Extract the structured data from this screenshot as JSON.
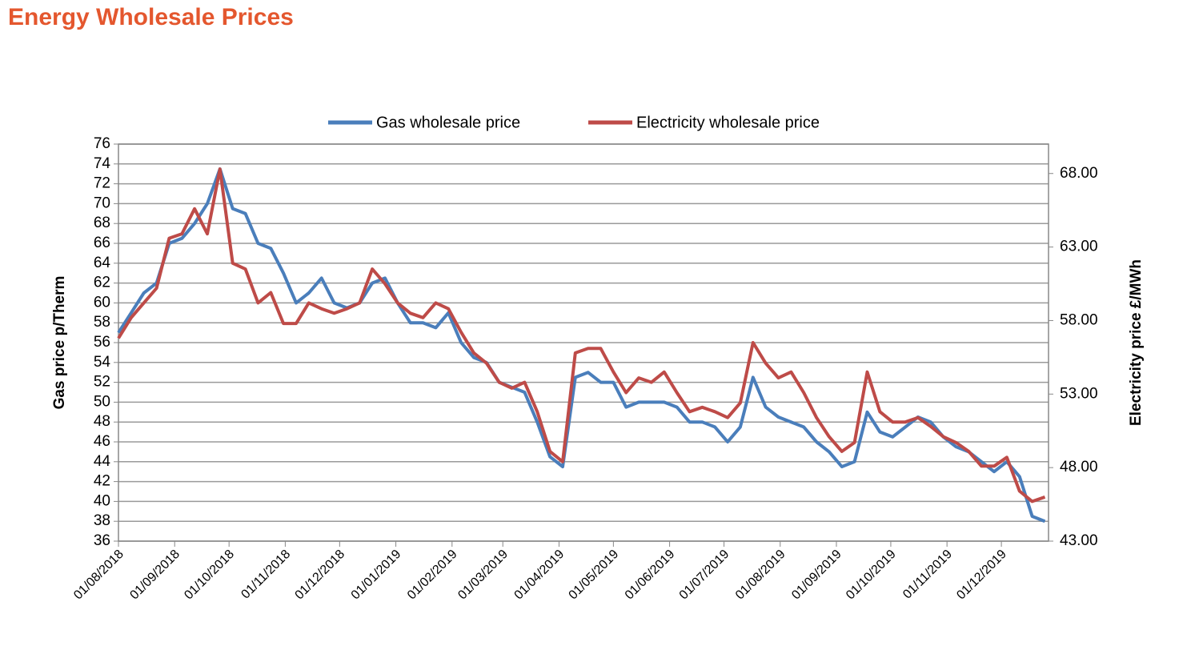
{
  "chart_data": {
    "type": "line",
    "title": "Energy Wholesale Prices",
    "ylabel": "Gas price p/Therm",
    "y2label": "Electricity price £/MWh",
    "x": [
      "2018-08-01",
      "2018-08-08",
      "2018-08-15",
      "2018-08-22",
      "2018-08-29",
      "2018-09-05",
      "2018-09-12",
      "2018-09-19",
      "2018-09-26",
      "2018-10-03",
      "2018-10-10",
      "2018-10-17",
      "2018-10-24",
      "2018-10-31",
      "2018-11-07",
      "2018-11-14",
      "2018-11-21",
      "2018-11-28",
      "2018-12-05",
      "2018-12-12",
      "2018-12-19",
      "2018-12-26",
      "2019-01-02",
      "2019-01-09",
      "2019-01-16",
      "2019-01-23",
      "2019-01-30",
      "2019-02-06",
      "2019-02-13",
      "2019-02-20",
      "2019-02-27",
      "2019-03-06",
      "2019-03-13",
      "2019-03-20",
      "2019-03-27",
      "2019-04-03",
      "2019-04-10",
      "2019-04-17",
      "2019-04-24",
      "2019-05-01",
      "2019-05-08",
      "2019-05-15",
      "2019-05-22",
      "2019-05-29",
      "2019-06-05",
      "2019-06-12",
      "2019-06-19",
      "2019-06-26",
      "2019-07-03",
      "2019-07-10",
      "2019-07-17",
      "2019-07-24",
      "2019-07-31",
      "2019-08-07",
      "2019-08-14",
      "2019-08-21",
      "2019-08-28",
      "2019-09-04",
      "2019-09-11",
      "2019-09-18",
      "2019-09-25",
      "2019-10-02",
      "2019-10-09",
      "2019-10-16",
      "2019-10-23",
      "2019-10-30",
      "2019-11-06",
      "2019-11-13",
      "2019-11-20",
      "2019-11-27",
      "2019-12-04",
      "2019-12-11",
      "2019-12-18",
      "2019-12-25"
    ],
    "series": [
      {
        "name": "Gas wholesale price",
        "color": "#4a7ebb",
        "axis": "y",
        "values": [
          57,
          59,
          61,
          62,
          66,
          66.5,
          68,
          70,
          73.5,
          69.5,
          69,
          66,
          65.5,
          63,
          60,
          61,
          62.5,
          60,
          59.5,
          60,
          62,
          62.5,
          60,
          58,
          58,
          57.5,
          59,
          56,
          54.5,
          54,
          52,
          51.5,
          51,
          48,
          44.5,
          43.5,
          52.5,
          53,
          52,
          52,
          49.5,
          50,
          50,
          50,
          49.5,
          48,
          48,
          47.5,
          46,
          47.5,
          52.5,
          49.5,
          48.5,
          48,
          47.5,
          46,
          45,
          43.5,
          44,
          49,
          47,
          46.5,
          47.5,
          48.5,
          48,
          46.5,
          45.5,
          45,
          44,
          43,
          44,
          42.5,
          38.5,
          38
        ]
      },
      {
        "name": "Electricity wholesale price",
        "color": "#be4b48",
        "axis": "y2",
        "values": [
          56.8,
          58.2,
          59.2,
          60.2,
          63.6,
          63.9,
          65.6,
          63.9,
          68.3,
          61.9,
          61.5,
          59.2,
          59.9,
          57.8,
          57.8,
          59.2,
          58.8,
          58.5,
          58.8,
          59.2,
          61.5,
          60.5,
          59.2,
          58.5,
          58.2,
          59.2,
          58.8,
          57.2,
          55.8,
          55.1,
          53.8,
          53.4,
          53.8,
          51.8,
          49.1,
          48.4,
          55.8,
          56.1,
          56.1,
          54.5,
          53.1,
          54.1,
          53.8,
          54.5,
          53.1,
          51.8,
          52.1,
          51.8,
          51.4,
          52.4,
          56.5,
          55.1,
          54.1,
          54.5,
          53.1,
          51.4,
          50.1,
          49.1,
          49.7,
          54.5,
          51.8,
          51.1,
          51.1,
          51.4,
          50.8,
          50.1,
          49.7,
          49.1,
          48.1,
          48.1,
          48.7,
          46.4,
          45.7,
          46.0
        ]
      }
    ],
    "xlim": [
      "2018-08-01",
      "2019-12-27"
    ],
    "xticks": [
      {
        "value": "2018-08-01",
        "label": "01/08/2018"
      },
      {
        "value": "2018-09-01",
        "label": "01/09/2018"
      },
      {
        "value": "2018-10-01",
        "label": "01/10/2018"
      },
      {
        "value": "2018-11-01",
        "label": "01/11/2018"
      },
      {
        "value": "2018-12-01",
        "label": "01/12/2018"
      },
      {
        "value": "2019-01-01",
        "label": "01/01/2019"
      },
      {
        "value": "2019-02-01",
        "label": "01/02/2019"
      },
      {
        "value": "2019-03-01",
        "label": "01/03/2019"
      },
      {
        "value": "2019-04-01",
        "label": "01/04/2019"
      },
      {
        "value": "2019-05-01",
        "label": "01/05/2019"
      },
      {
        "value": "2019-06-01",
        "label": "01/06/2019"
      },
      {
        "value": "2019-07-01",
        "label": "01/07/2019"
      },
      {
        "value": "2019-08-01",
        "label": "01/08/2019"
      },
      {
        "value": "2019-09-01",
        "label": "01/09/2019"
      },
      {
        "value": "2019-10-01",
        "label": "01/10/2019"
      },
      {
        "value": "2019-11-01",
        "label": "01/11/2019"
      },
      {
        "value": "2019-12-01",
        "label": "01/12/2019"
      }
    ],
    "ylim": [
      36,
      76
    ],
    "yticks": [
      36,
      38,
      40,
      42,
      44,
      46,
      48,
      50,
      52,
      54,
      56,
      58,
      60,
      62,
      64,
      66,
      68,
      70,
      72,
      74,
      76
    ],
    "y2lim": [
      43,
      70
    ],
    "y2ticks": [
      {
        "value": 43,
        "label": "43.00"
      },
      {
        "value": 48,
        "label": "48.00"
      },
      {
        "value": 53,
        "label": "53.00"
      },
      {
        "value": 58,
        "label": "58.00"
      },
      {
        "value": 63,
        "label": "63.00"
      },
      {
        "value": 68,
        "label": "68.00"
      }
    ],
    "grid": true,
    "legend": "top"
  }
}
